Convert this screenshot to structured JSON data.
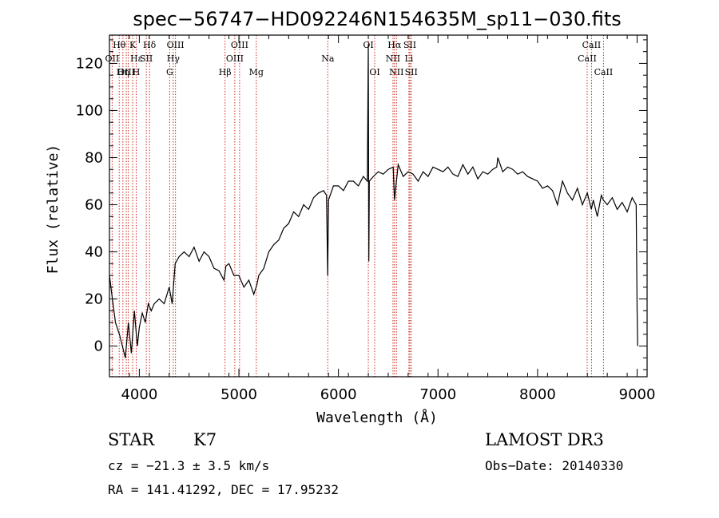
{
  "chart_data": {
    "type": "line",
    "title": "spec−56747−HD092246N154635M_sp11−030.fits",
    "xlabel": "Wavelength (Å)",
    "ylabel": "Flux (relative)",
    "xlim": [
      3700,
      9100
    ],
    "ylim": [
      -13,
      132
    ],
    "xticks": [
      4000,
      5000,
      6000,
      7000,
      8000,
      9000
    ],
    "yticks": [
      0,
      20,
      40,
      60,
      80,
      100,
      120
    ],
    "series": [
      {
        "name": "flux",
        "x": [
          3700,
          3730,
          3760,
          3800,
          3830,
          3860,
          3890,
          3920,
          3950,
          3980,
          4000,
          4030,
          4060,
          4090,
          4120,
          4150,
          4200,
          4250,
          4300,
          4330,
          4360,
          4400,
          4450,
          4500,
          4550,
          4600,
          4650,
          4700,
          4750,
          4800,
          4850,
          4870,
          4900,
          4950,
          5000,
          5050,
          5100,
          5150,
          5180,
          5200,
          5250,
          5300,
          5350,
          5400,
          5450,
          5500,
          5550,
          5600,
          5650,
          5700,
          5750,
          5800,
          5850,
          5880,
          5892,
          5900,
          5950,
          6000,
          6050,
          6100,
          6150,
          6200,
          6250,
          6290,
          6300,
          6305,
          6310,
          6350,
          6400,
          6450,
          6500,
          6550,
          6563,
          6600,
          6650,
          6700,
          6750,
          6800,
          6850,
          6900,
          6950,
          7000,
          7050,
          7100,
          7150,
          7200,
          7250,
          7300,
          7350,
          7400,
          7450,
          7500,
          7550,
          7590,
          7600,
          7650,
          7700,
          7750,
          7800,
          7850,
          7900,
          7950,
          8000,
          8050,
          8100,
          8150,
          8200,
          8250,
          8300,
          8350,
          8400,
          8450,
          8500,
          8540,
          8560,
          8600,
          8640,
          8660,
          8700,
          8750,
          8800,
          8850,
          8900,
          8950,
          8990,
          9000,
          9005
        ],
        "y": [
          30,
          20,
          10,
          5,
          0,
          -5,
          10,
          -3,
          15,
          0,
          8,
          14,
          10,
          18,
          15,
          18,
          20,
          18,
          25,
          18,
          35,
          38,
          40,
          38,
          42,
          36,
          40,
          38,
          33,
          32,
          28,
          34,
          35,
          30,
          30,
          25,
          28,
          22,
          26,
          30,
          33,
          40,
          43,
          45,
          50,
          52,
          57,
          55,
          60,
          58,
          63,
          65,
          66,
          64,
          30,
          62,
          68,
          68,
          66,
          70,
          70,
          68,
          72,
          70,
          128,
          36,
          70,
          72,
          74,
          73,
          75,
          76,
          62,
          77,
          72,
          74,
          73,
          70,
          74,
          72,
          76,
          75,
          74,
          76,
          73,
          72,
          77,
          73,
          76,
          71,
          74,
          73,
          75,
          76,
          80,
          74,
          76,
          75,
          73,
          74,
          72,
          71,
          70,
          67,
          68,
          66,
          60,
          70,
          65,
          62,
          67,
          60,
          65,
          58,
          62,
          55,
          64,
          62,
          60,
          63,
          58,
          61,
          57,
          63,
          60,
          15,
          0
        ]
      }
    ],
    "emission_lines": [
      {
        "label": "Hθ",
        "wl": 3798,
        "row": 1
      },
      {
        "label": "OII",
        "wl": 3727,
        "row": 2
      },
      {
        "label": "OIII",
        "wl": 3869,
        "row": 3
      },
      {
        "label": "K",
        "wl": 3934,
        "row": 1
      },
      {
        "label": "Hε",
        "wl": 3970,
        "row": 2
      },
      {
        "label": "Hη",
        "wl": 3835,
        "row": 3
      },
      {
        "label": "H",
        "wl": 3969,
        "row": 3
      },
      {
        "label": "Hδ",
        "wl": 4102,
        "row": 1
      },
      {
        "label": "SII",
        "wl": 4070,
        "row": 2
      },
      {
        "label": "OIII",
        "wl": 4363,
        "row": 1
      },
      {
        "label": "Hγ",
        "wl": 4341,
        "row": 2
      },
      {
        "label": "G",
        "wl": 4305,
        "row": 3
      },
      {
        "label": "OIII",
        "wl": 5007,
        "row": 1
      },
      {
        "label": "OIII",
        "wl": 4959,
        "row": 2
      },
      {
        "label": "Hβ",
        "wl": 4861,
        "row": 3
      },
      {
        "label": "Mg",
        "wl": 5175,
        "row": 3
      },
      {
        "label": "Na",
        "wl": 5893,
        "row": 2
      },
      {
        "label": "OI",
        "wl": 6300,
        "row": 1
      },
      {
        "label": "OI",
        "wl": 6364,
        "row": 3
      },
      {
        "label": "Hα",
        "wl": 6563,
        "row": 1
      },
      {
        "label": "NII",
        "wl": 6548,
        "row": 2
      },
      {
        "label": "NII",
        "wl": 6583,
        "row": 3
      },
      {
        "label": "SII",
        "wl": 6717,
        "row": 1
      },
      {
        "label": "Li",
        "wl": 6708,
        "row": 2
      },
      {
        "label": "SII",
        "wl": 6731,
        "row": 3
      },
      {
        "label": "CaII",
        "wl": 8542,
        "row": 1
      },
      {
        "label": "CaII",
        "wl": 8498,
        "row": 2
      },
      {
        "label": "CaII",
        "wl": 8662,
        "row": 3
      }
    ],
    "marker_wavelengths": [
      3727,
      3798,
      3835,
      3869,
      3889,
      3934,
      3969,
      4070,
      4102,
      4305,
      4341,
      4363,
      4861,
      4959,
      5007,
      5175,
      5893,
      6300,
      6364,
      6548,
      6563,
      6583,
      6708,
      6717,
      6731,
      8498,
      8542,
      8662
    ]
  },
  "info": {
    "type": "STAR",
    "subclass": "K7",
    "velocity": "cz = −21.3 ± 3.5 km/s",
    "coords": "RA = 141.41292, DEC =  17.95232",
    "survey": "LAMOST DR3",
    "obs_date": "Obs−Date: 20140330"
  },
  "colors": {
    "line": "#000000",
    "marker": "#cc2a1e"
  }
}
